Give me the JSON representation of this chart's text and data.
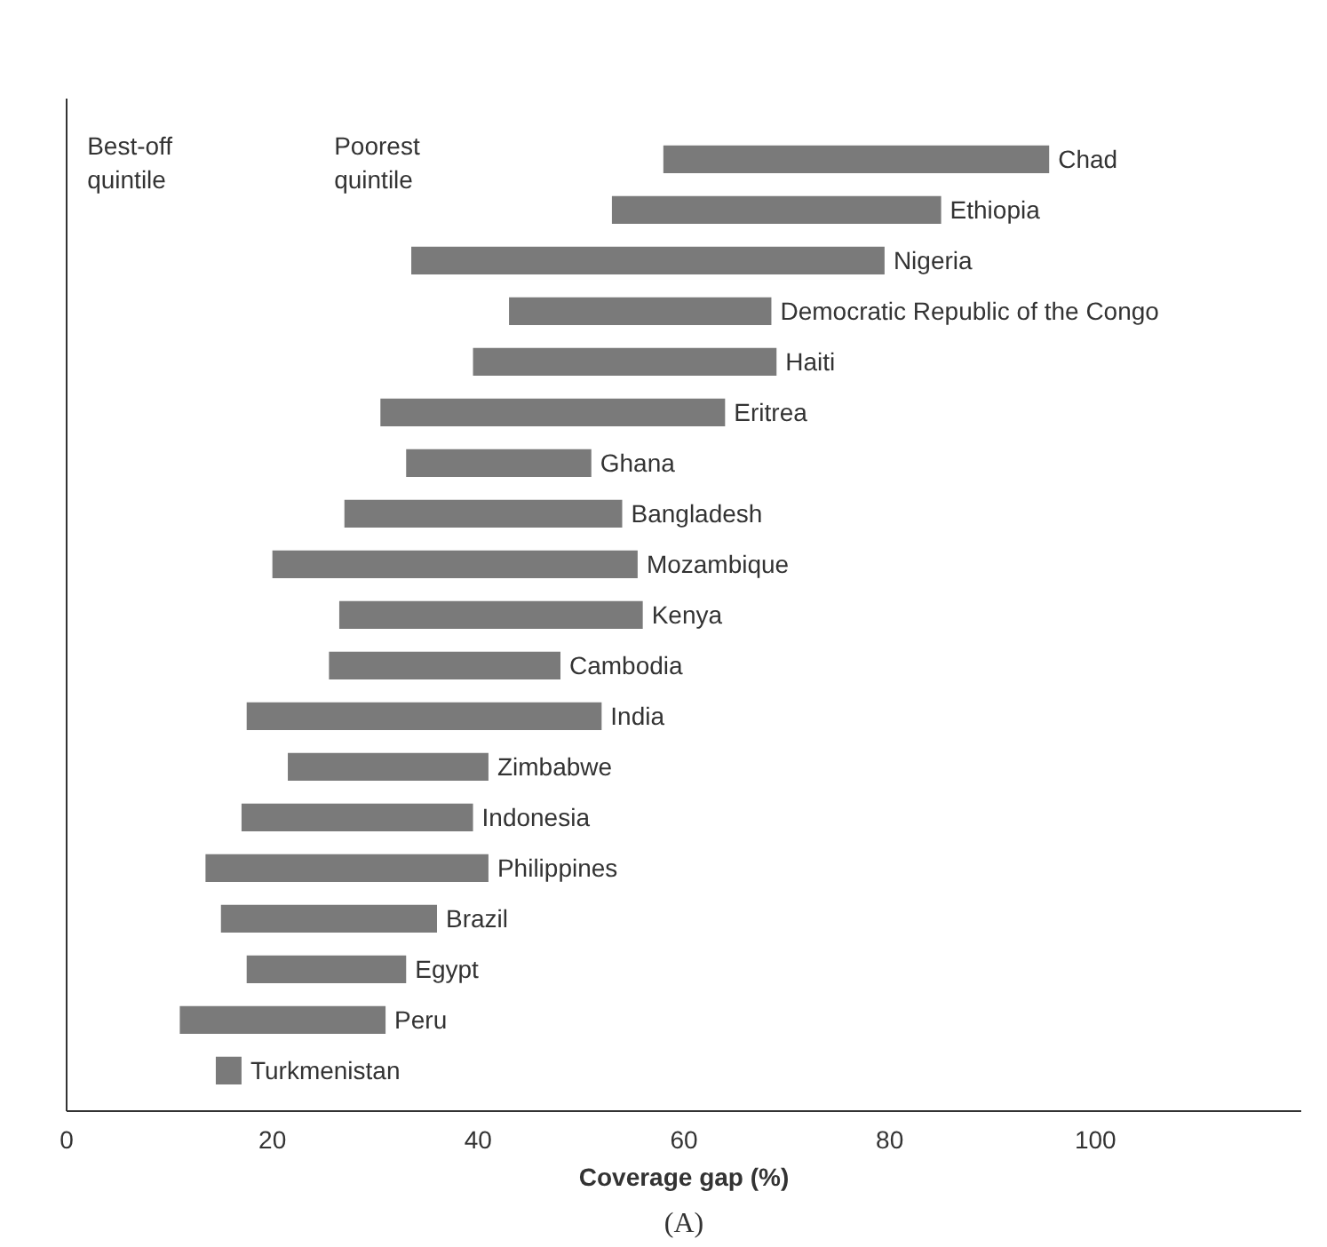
{
  "chart_data": {
    "type": "bar",
    "orientation": "horizontal",
    "xlabel": "Coverage gap (%)",
    "categories": [
      "Chad",
      "Ethiopia",
      "Nigeria",
      "Democratic Republic of the Congo",
      "Haiti",
      "Eritrea",
      "Ghana",
      "Bangladesh",
      "Mozambique",
      "Kenya",
      "Cambodia",
      "India",
      "Zimbabwe",
      "Indonesia",
      "Philippines",
      "Brazil",
      "Egypt",
      "Peru",
      "Turkmenistan"
    ],
    "base": [
      58,
      53,
      33.5,
      43,
      39.5,
      30.5,
      33,
      27,
      20,
      26.5,
      25.5,
      17.5,
      21.5,
      17,
      13.5,
      15,
      17.5,
      11,
      14.5
    ],
    "values": [
      37.5,
      32,
      46,
      25.5,
      29.5,
      33.5,
      18,
      27,
      35.5,
      29.5,
      22.5,
      34.5,
      19.5,
      22.5,
      27.5,
      21,
      15.5,
      20,
      2.5
    ],
    "color": "#7a7a7a",
    "xlim": [
      0,
      120
    ],
    "xticks": [
      0,
      20,
      40,
      60,
      80,
      100
    ],
    "tick_labels": "x",
    "grid": false,
    "annotations": [
      "Best-off\nquintile",
      "Poorest\nquintile",
      "(A)"
    ]
  }
}
